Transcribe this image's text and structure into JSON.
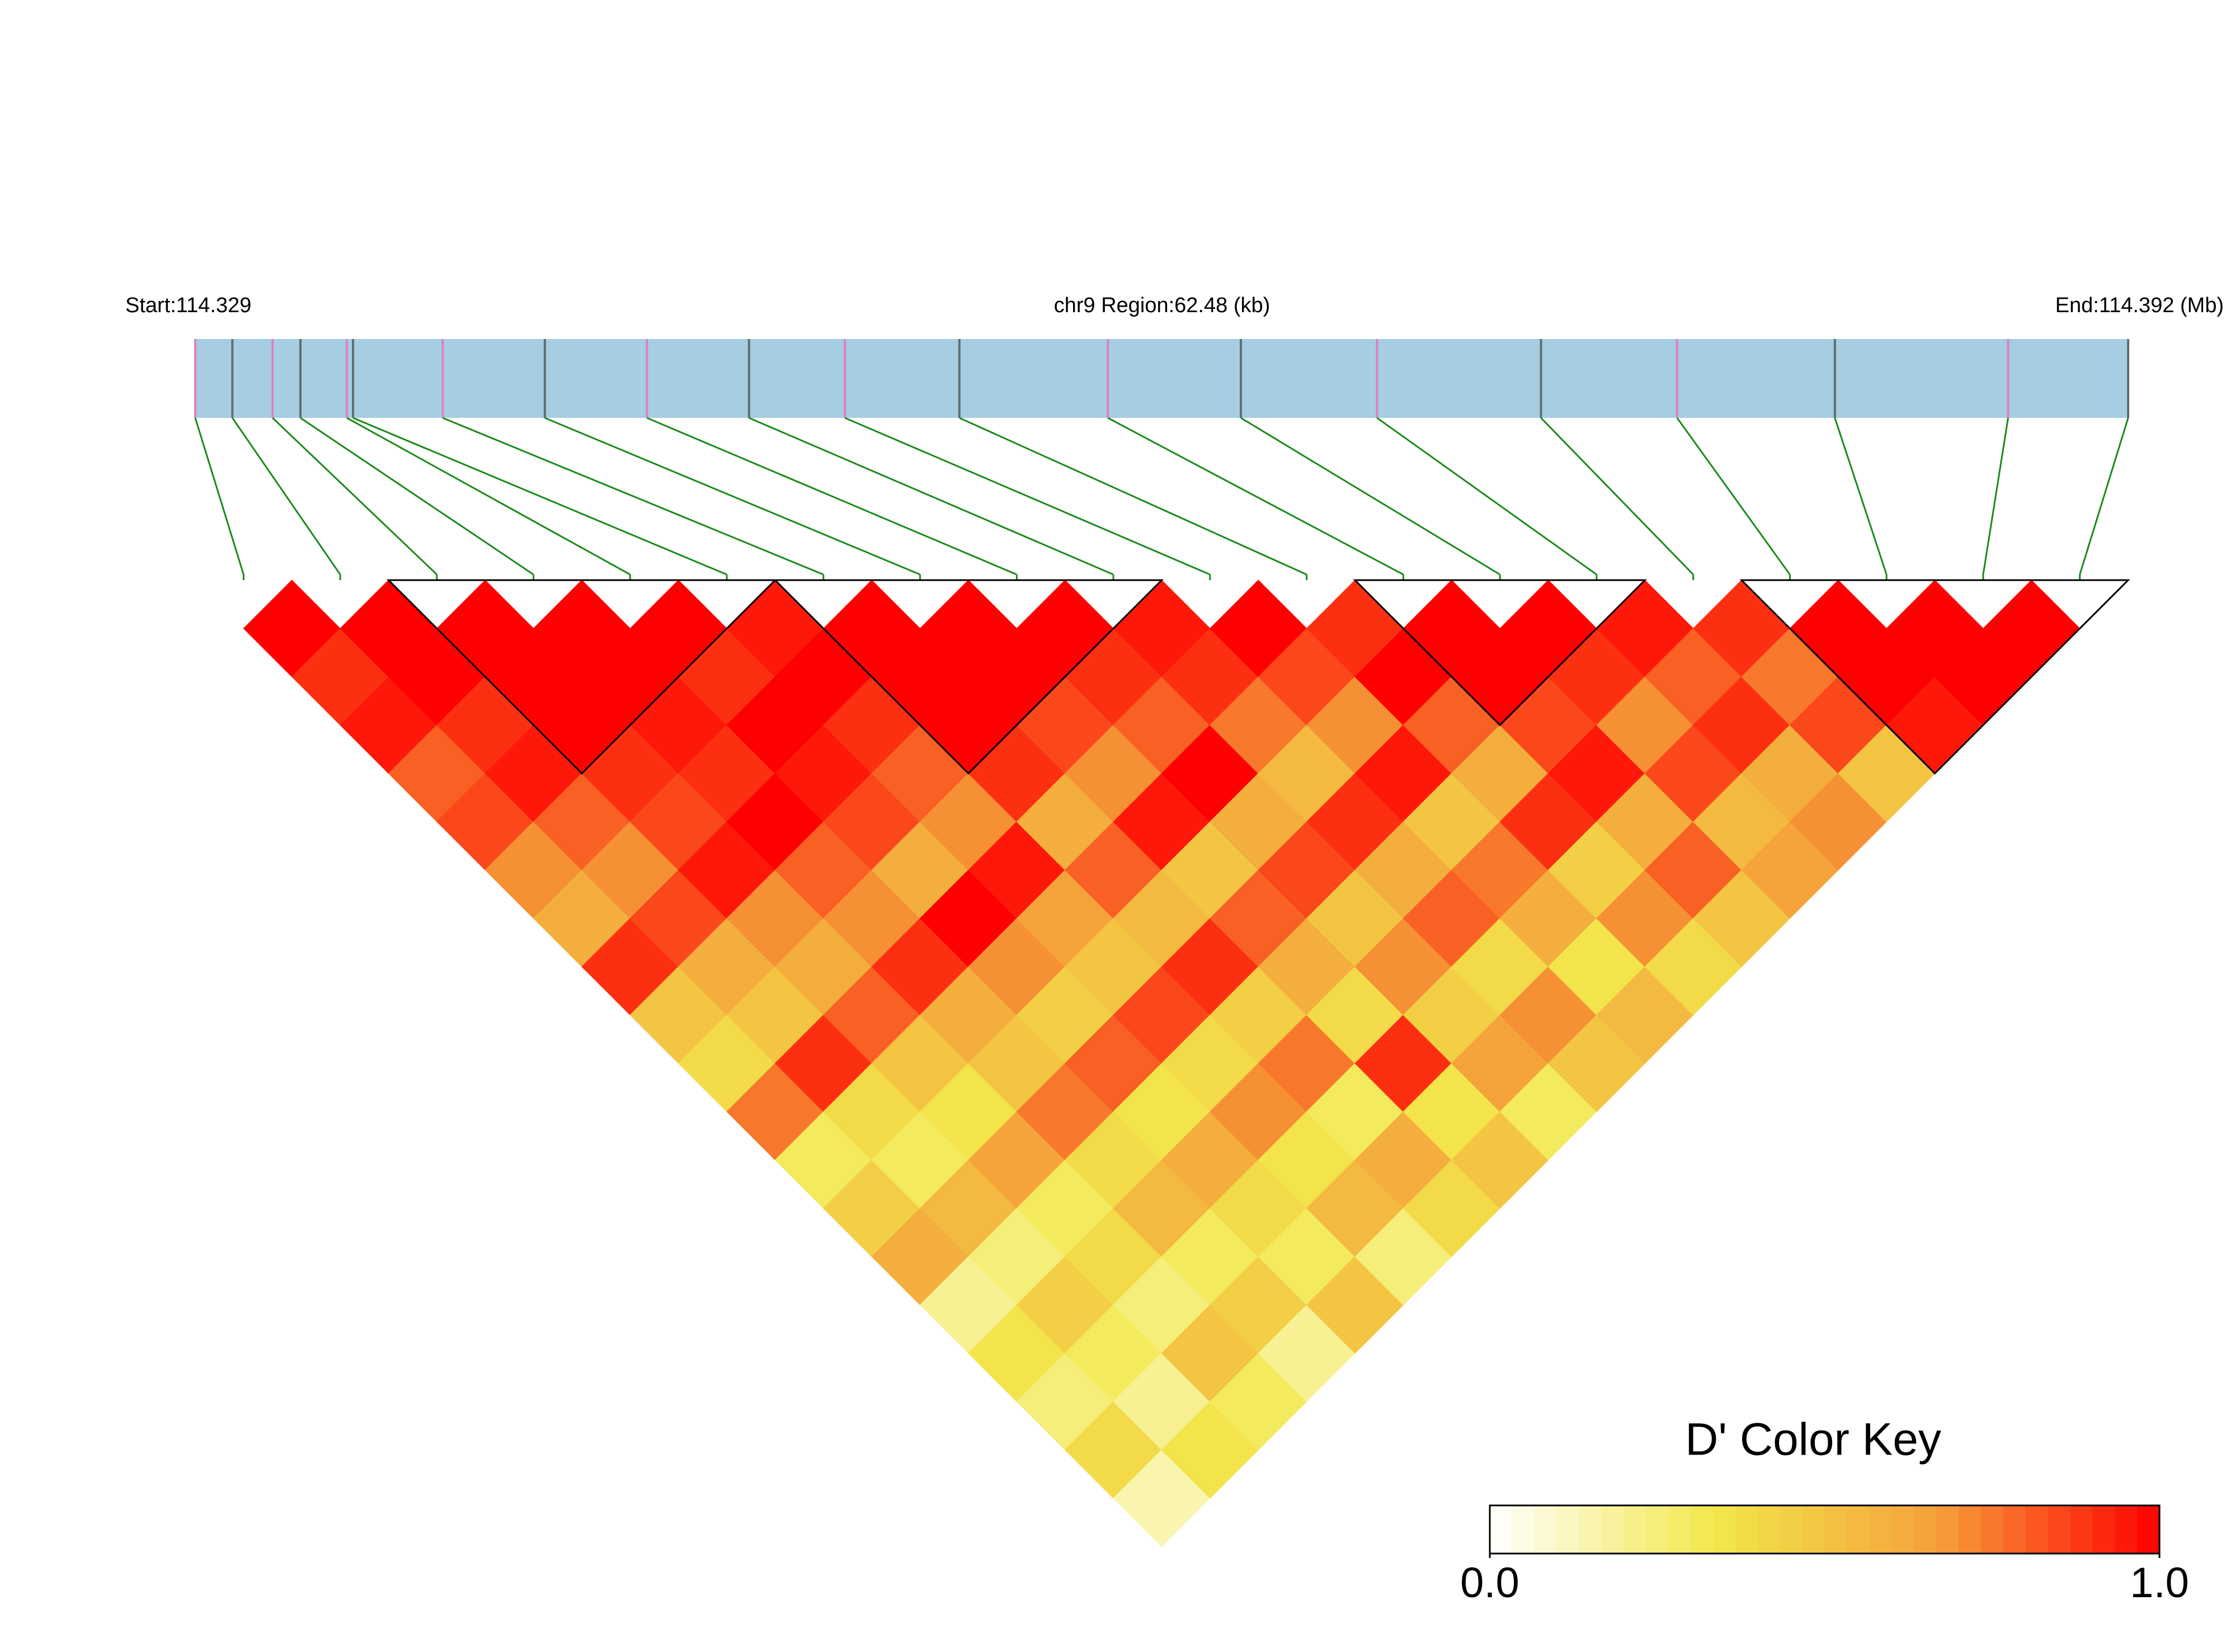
{
  "chart_data": {
    "type": "ld-heatmap",
    "start_label": "Start:114.329",
    "region_label": "chr9 Region:62.48 (kb)",
    "end_label": "End:114.392 (Mb)",
    "key_title": "D' Color Key",
    "key_ticks": [
      {
        "value": 0,
        "label": "0.0"
      },
      {
        "value": 1,
        "label": "1.0"
      }
    ],
    "colors": [
      "#ffffff",
      "#f2e84b",
      "#f5a03a",
      "#ff0000"
    ],
    "bar_color": "#a6cde2",
    "marker_colors": [
      "#e080c0",
      "#5f6f6f"
    ],
    "link_color": "#1a8a1a",
    "block_color": "#000000",
    "xlim": [
      0,
      62.48
    ],
    "positions": [
      0,
      1.2,
      2.5,
      3.4,
      4.9,
      5.1,
      8.0,
      11.3,
      14.6,
      17.9,
      21.0,
      24.7,
      29.5,
      33.8,
      38.2,
      43.5,
      47.9,
      53.0,
      58.6,
      62.48
    ],
    "dprime": [
      [
        1,
        0.9,
        0.95,
        0.8,
        0.85,
        0.7,
        0.6,
        0.9,
        0.5,
        0.4,
        0.75,
        0.3,
        0.45,
        0.6,
        0.2,
        0.35,
        0.25,
        0.4,
        0.15
      ],
      [
        1,
        1,
        0.9,
        0.95,
        0.8,
        0.7,
        0.85,
        0.6,
        0.5,
        0.9,
        0.4,
        0.3,
        0.55,
        0.25,
        0.45,
        0.3,
        0.2,
        0.35
      ],
      [
        1,
        1,
        1,
        0.9,
        0.85,
        0.95,
        0.7,
        0.6,
        0.8,
        0.5,
        0.35,
        0.65,
        0.3,
        0.4,
        0.25,
        0.5,
        0.3
      ],
      [
        1,
        1,
        0.95,
        0.9,
        1,
        0.8,
        0.7,
        0.9,
        0.6,
        0.5,
        0.75,
        0.4,
        0.55,
        0.3,
        0.45,
        0.2
      ],
      [
        1,
        0.9,
        1,
        0.95,
        0.85,
        0.6,
        1,
        0.7,
        0.45,
        0.8,
        0.35,
        0.6,
        0.4,
        0.3,
        0.5
      ],
      [
        0.95,
        1,
        0.9,
        0.8,
        0.7,
        0.95,
        0.65,
        0.5,
        0.85,
        0.4,
        0.7,
        0.35,
        0.55,
        0.25
      ],
      [
        1,
        1,
        1,
        0.9,
        0.6,
        0.8,
        0.55,
        0.9,
        0.45,
        0.75,
        0.3,
        0.6,
        0.4
      ],
      [
        1,
        1,
        0.85,
        0.7,
        0.95,
        0.5,
        0.8,
        0.6,
        0.4,
        0.9,
        0.35,
        0.5
      ],
      [
        1,
        0.9,
        0.8,
        1,
        0.6,
        0.85,
        0.5,
        0.7,
        0.45,
        0.65,
        0.3
      ],
      [
        0.95,
        0.9,
        0.75,
        0.55,
        0.9,
        0.6,
        0.8,
        0.4,
        0.7,
        0.5
      ],
      [
        1,
        0.85,
        0.7,
        0.95,
        0.5,
        0.75,
        0.6,
        0.35,
        0.55
      ],
      [
        0.9,
        1,
        0.8,
        0.6,
        0.9,
        0.45,
        0.7,
        0.4
      ],
      [
        1,
        1,
        0.85,
        0.95,
        0.6,
        0.8,
        0.5
      ],
      [
        1,
        0.9,
        0.7,
        0.85,
        0.55,
        0.65
      ],
      [
        0.95,
        0.8,
        0.9,
        0.6,
        0.7
      ],
      [
        0.9,
        0.75,
        0.85,
        0.5
      ],
      [
        1,
        1,
        0.95
      ],
      [
        1,
        1
      ],
      [
        1
      ]
    ],
    "blocks": [
      [
        2,
        5
      ],
      [
        6,
        9
      ],
      [
        12,
        14
      ],
      [
        16,
        19
      ]
    ]
  }
}
